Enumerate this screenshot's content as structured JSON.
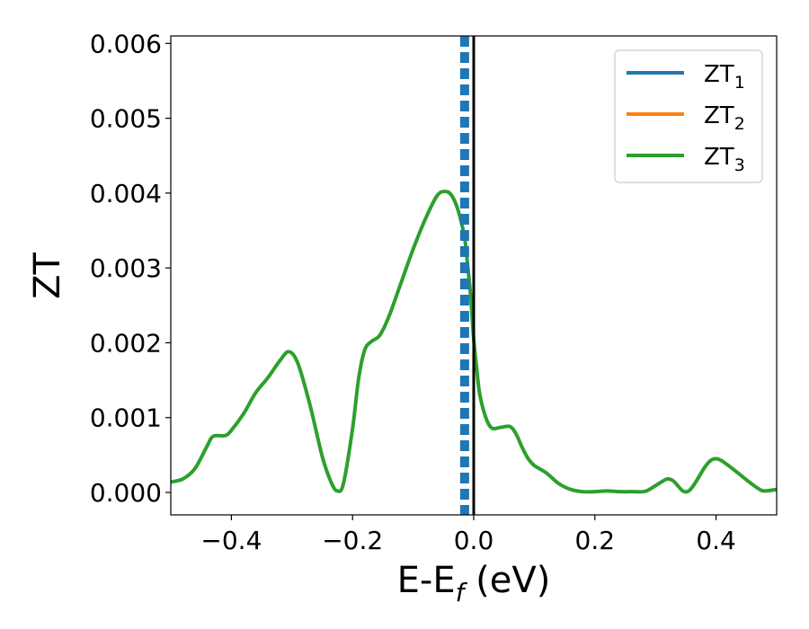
{
  "chart_data": {
    "type": "line",
    "xlabel": "E-E",
    "xlabel_sub": "f",
    "xlabel_unit": " (eV)",
    "ylabel": "ZT",
    "xlim": [
      -0.5,
      0.5
    ],
    "ylim": [
      -0.0003,
      0.0061
    ],
    "x_ticks": [
      -0.4,
      -0.2,
      0.0,
      0.2,
      0.4
    ],
    "x_tick_labels": [
      "−0.4",
      "−0.2",
      "0.0",
      "0.2",
      "0.4"
    ],
    "y_ticks": [
      0.0,
      0.001,
      0.002,
      0.003,
      0.004,
      0.005,
      0.006
    ],
    "y_tick_labels": [
      "0.000",
      "0.001",
      "0.002",
      "0.003",
      "0.004",
      "0.005",
      "0.006"
    ],
    "grid": false,
    "legend_position": "top-right",
    "vertical_lines": [
      {
        "x": -0.015,
        "style": "dotted",
        "color": "#1f77b4"
      },
      {
        "x": 0.0,
        "style": "solid",
        "color": "#000000"
      }
    ],
    "series": [
      {
        "name": "ZT",
        "sub": "1",
        "color": "#1f77b4",
        "points": [],
        "x": [],
        "values": []
      },
      {
        "name": "ZT",
        "sub": "2",
        "color": "#ff7f0e",
        "points": [],
        "x": [],
        "values": []
      },
      {
        "name": "ZT",
        "sub": "3",
        "color": "#2ca02c",
        "x": [
          -0.5,
          -0.48,
          -0.46,
          -0.44,
          -0.43,
          -0.41,
          -0.4,
          -0.38,
          -0.36,
          -0.34,
          -0.32,
          -0.305,
          -0.29,
          -0.27,
          -0.25,
          -0.235,
          -0.225,
          -0.215,
          -0.2,
          -0.19,
          -0.18,
          -0.17,
          -0.155,
          -0.14,
          -0.12,
          -0.1,
          -0.08,
          -0.06,
          -0.045,
          -0.035,
          -0.025,
          -0.015,
          -0.01,
          -0.005,
          0.0,
          0.005,
          0.01,
          0.02,
          0.03,
          0.045,
          0.06,
          0.07,
          0.08,
          0.09,
          0.1,
          0.12,
          0.14,
          0.16,
          0.18,
          0.2,
          0.22,
          0.24,
          0.26,
          0.28,
          0.29,
          0.31,
          0.32,
          0.33,
          0.345,
          0.355,
          0.365,
          0.38,
          0.39,
          0.4,
          0.41,
          0.43,
          0.45,
          0.47,
          0.48,
          0.5
        ],
        "values": [
          0.00014,
          0.00018,
          0.00032,
          0.00062,
          0.00075,
          0.00076,
          0.00083,
          0.00105,
          0.00133,
          0.00153,
          0.00176,
          0.00188,
          0.00172,
          0.00116,
          0.00048,
          0.00013,
          2e-05,
          0.00012,
          0.00085,
          0.00152,
          0.0019,
          0.00201,
          0.0021,
          0.00235,
          0.0028,
          0.00325,
          0.00365,
          0.00397,
          0.00402,
          0.00395,
          0.00375,
          0.0034,
          0.00303,
          0.00262,
          0.00205,
          0.00165,
          0.00131,
          0.001,
          0.00086,
          0.00087,
          0.00088,
          0.00078,
          0.0006,
          0.00045,
          0.00036,
          0.00026,
          0.00012,
          4e-05,
          1e-05,
          1e-05,
          2e-05,
          1e-05,
          1e-05,
          1e-05,
          4e-05,
          0.00014,
          0.00018,
          0.00015,
          2e-05,
          2e-05,
          0.00012,
          0.00032,
          0.00042,
          0.00045,
          0.00042,
          0.0003,
          0.00017,
          5e-05,
          2e-05,
          4e-05
        ]
      }
    ]
  }
}
